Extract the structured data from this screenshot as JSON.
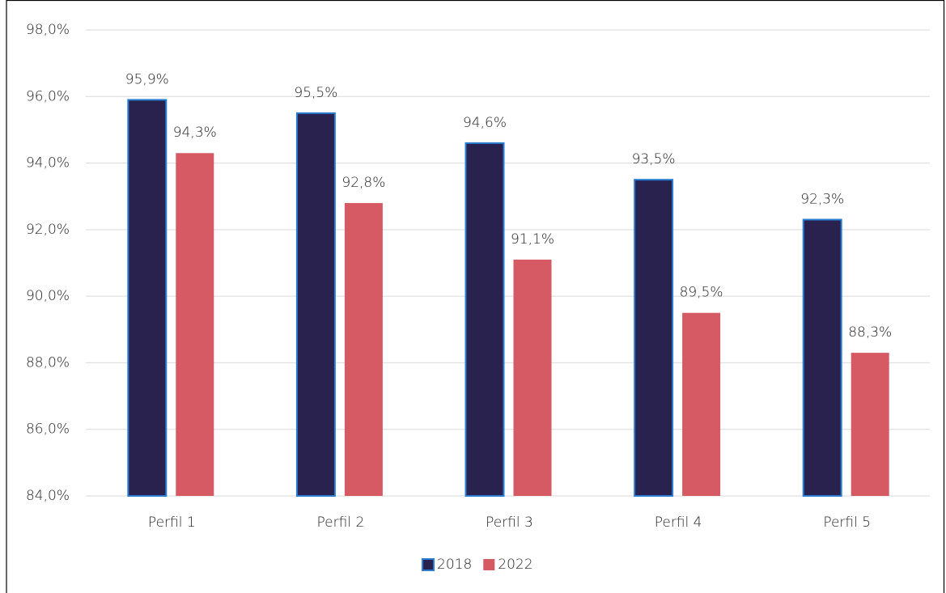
{
  "chart_data": {
    "type": "bar",
    "categories": [
      "Perfil 1",
      "Perfil 2",
      "Perfil 3",
      "Perfil 4",
      "Perfil 5"
    ],
    "series": [
      {
        "name": "2018",
        "color": "#29224f",
        "values": [
          95.9,
          95.5,
          94.6,
          93.5,
          92.3
        ],
        "value_labels": [
          "95,9%",
          "95,5%",
          "94,6%",
          "93,5%",
          "92,3%"
        ]
      },
      {
        "name": "2022",
        "color": "#d65a64",
        "values": [
          94.3,
          92.8,
          91.1,
          89.5,
          88.3
        ],
        "value_labels": [
          "94,3%",
          "92,8%",
          "91,1%",
          "89,5%",
          "88,3%"
        ]
      }
    ],
    "ylim": [
      84,
      98
    ],
    "yticks": [
      {
        "value": 84,
        "label": "84,0%"
      },
      {
        "value": 86,
        "label": "86,0%"
      },
      {
        "value": 88,
        "label": "88,0%"
      },
      {
        "value": 90,
        "label": "90,0%"
      },
      {
        "value": 92,
        "label": "92,0%"
      },
      {
        "value": 94,
        "label": "94,0%"
      },
      {
        "value": 96,
        "label": "96,0%"
      },
      {
        "value": 98,
        "label": "98,0%"
      }
    ],
    "grid": true,
    "legend": "bottom"
  }
}
